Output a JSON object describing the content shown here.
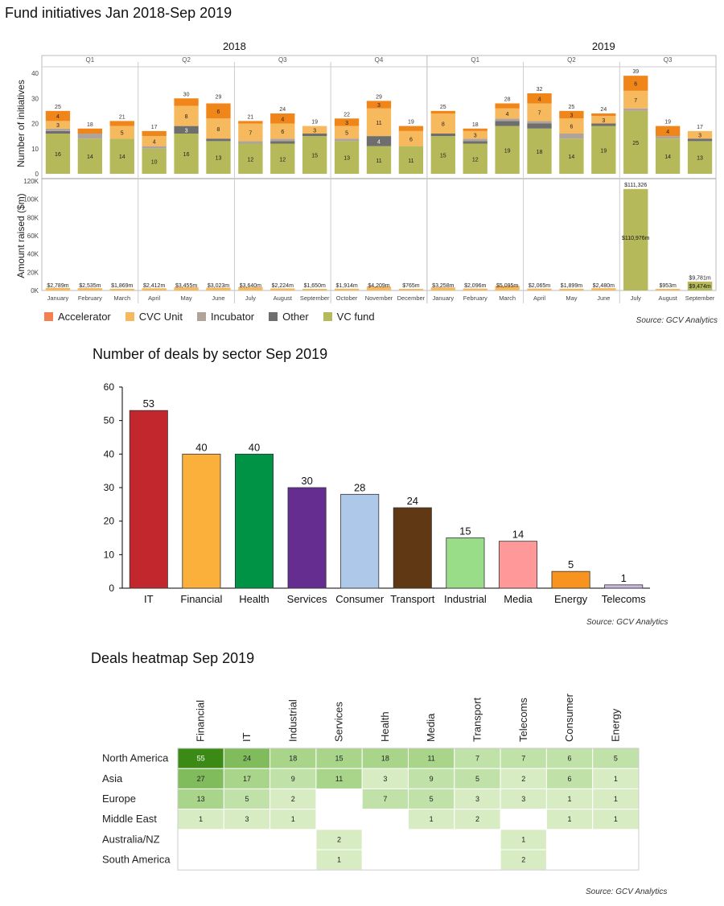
{
  "chart_data": [
    {
      "type": "bar",
      "stacked": true,
      "title": "Fund initiatives Jan 2018-Sep 2019",
      "years": [
        "2018",
        "2019"
      ],
      "quarters": [
        "Q1",
        "Q2",
        "Q3",
        "Q4",
        "Q1",
        "Q2",
        "Q3"
      ],
      "categories": [
        "January",
        "February",
        "March",
        "April",
        "May",
        "June",
        "July",
        "August",
        "September",
        "October",
        "November",
        "December",
        "January",
        "February",
        "March",
        "April",
        "May",
        "June",
        "July",
        "August",
        "September"
      ],
      "ylabel_top": "Number of initiatives",
      "ylabel_bottom": "Amount raised ($m)",
      "ylim_top": [
        0,
        40
      ],
      "yticks_top": [
        "0",
        "10",
        "20",
        "30",
        "40"
      ],
      "ylim_bottom": [
        0,
        120000
      ],
      "yticks_bottom": [
        "0K",
        "20K",
        "40K",
        "60K",
        "80K",
        "100K",
        "120K"
      ],
      "totals": [
        25,
        18,
        21,
        17,
        30,
        29,
        21,
        24,
        19,
        22,
        29,
        19,
        25,
        18,
        28,
        32,
        25,
        24,
        39,
        19,
        17
      ],
      "series": [
        {
          "name": "VC fund",
          "color": "#b5b95a",
          "values": [
            16,
            14,
            14,
            10,
            16,
            13,
            12,
            12,
            15,
            13,
            11,
            11,
            15,
            12,
            19,
            18,
            14,
            19,
            25,
            14,
            13
          ]
        },
        {
          "name": "Other",
          "color": "#6e6e6e",
          "values": [
            1,
            0,
            0,
            0,
            3,
            1,
            0,
            1,
            1,
            0,
            4,
            0,
            1,
            1,
            2,
            2,
            0,
            1,
            0,
            0,
            1
          ]
        },
        {
          "name": "Incubator",
          "color": "#b0a49a",
          "values": [
            1,
            2,
            0,
            1,
            0,
            0,
            1,
            1,
            0,
            1,
            0,
            0,
            0,
            1,
            1,
            1,
            2,
            0,
            1,
            1,
            0
          ]
        },
        {
          "name": "CVC Unit",
          "color": "#f7b95d",
          "values": [
            3,
            0,
            5,
            4,
            8,
            8,
            7,
            6,
            3,
            5,
            11,
            6,
            8,
            3,
            4,
            7,
            6,
            3,
            7,
            0,
            3
          ]
        },
        {
          "name": "Accelerator",
          "color": "#f0861a",
          "values": [
            4,
            2,
            2,
            2,
            3,
            6,
            1,
            4,
            0,
            3,
            3,
            2,
            1,
            1,
            2,
            4,
            3,
            1,
            6,
            4,
            0
          ]
        }
      ],
      "labels": [
        [
          "16",
          "",
          "",
          "3",
          "4"
        ],
        [
          "14",
          "",
          "",
          "",
          ""
        ],
        [
          "14",
          "",
          "",
          "5",
          ""
        ],
        [
          "10",
          "",
          "",
          "4",
          ""
        ],
        [
          "16",
          "3",
          "",
          "8",
          ""
        ],
        [
          "13",
          "",
          "",
          "8",
          "6"
        ],
        [
          "12",
          "",
          "",
          "7",
          ""
        ],
        [
          "12",
          "",
          "",
          "6",
          "4"
        ],
        [
          "15",
          "",
          "",
          "3",
          ""
        ],
        [
          "13",
          "",
          "",
          "5",
          "3"
        ],
        [
          "11",
          "4",
          "",
          "11",
          "3"
        ],
        [
          "11",
          "",
          "",
          "6",
          ""
        ],
        [
          "15",
          "",
          "",
          "8",
          ""
        ],
        [
          "12",
          "",
          "",
          "3",
          ""
        ],
        [
          "19",
          "",
          "",
          "4",
          ""
        ],
        [
          "18",
          "",
          "",
          "7",
          "4"
        ],
        [
          "14",
          "",
          "",
          "6",
          "3"
        ],
        [
          "19",
          "",
          "",
          "3",
          ""
        ],
        [
          "25",
          "",
          "",
          "7",
          "6"
        ],
        [
          "14",
          "",
          "",
          "",
          "4"
        ],
        [
          "13",
          "",
          "",
          "3",
          ""
        ]
      ],
      "amounts": [
        2789,
        2535,
        1869,
        2412,
        3455,
        3023,
        3640,
        2224,
        1650,
        1914,
        4209,
        765,
        3258,
        2096,
        5095,
        2065,
        1899,
        2480,
        111326,
        953,
        9781
      ],
      "amount_labels": [
        "$2,789m",
        "$2,535m",
        "$1,869m",
        "$2,412m",
        "$3,455m",
        "$3,023m",
        "$3,640m",
        "$2,224m",
        "$1,650m",
        "$1,914m",
        "$4,209m",
        "$765m",
        "$3,258m",
        "$2,096m",
        "$5,095m",
        "$2,065m",
        "$1,899m",
        "$2,480m",
        "$111,326",
        "$953m",
        "$9,781m"
      ],
      "vc_amounts": [
        null,
        null,
        null,
        null,
        null,
        null,
        null,
        null,
        null,
        null,
        null,
        null,
        null,
        null,
        null,
        null,
        null,
        null,
        110976,
        null,
        9474
      ],
      "vc_amount_labels": {
        "18": "$110,976m",
        "20": "$9,474m"
      },
      "legend": [
        "Accelerator",
        "CVC Unit",
        "Incubator",
        "Other",
        "VC fund"
      ],
      "source": "Source: GCV Analytics"
    },
    {
      "type": "bar",
      "title": "Number of deals by sector Sep 2019",
      "categories": [
        "IT",
        "Financial",
        "Health",
        "Services",
        "Consumer",
        "Transport",
        "Industrial",
        "Media",
        "Energy",
        "Telecoms"
      ],
      "values": [
        53,
        40,
        40,
        30,
        28,
        24,
        15,
        14,
        5,
        1
      ],
      "colors": [
        "#c1272d",
        "#fbb03b",
        "#009245",
        "#662d91",
        "#adc8e8",
        "#603813",
        "#99dd88",
        "#ff9999",
        "#f7931e",
        "#c8b8e0"
      ],
      "ylim": [
        0,
        60
      ],
      "yticks": [
        "0",
        "10",
        "20",
        "30",
        "40",
        "50",
        "60"
      ],
      "xlabel": "",
      "ylabel": "",
      "source": "Source: GCV Analytics"
    },
    {
      "type": "heatmap",
      "title": "Deals heatmap Sep 2019",
      "columns": [
        "Financial",
        "IT",
        "Industrial",
        "Services",
        "Health",
        "Media",
        "Transport",
        "Telecoms",
        "Consumer",
        "Energy"
      ],
      "rows": [
        "North America",
        "Asia",
        "Europe",
        "Middle East",
        "Australia/NZ",
        "South America"
      ],
      "values": [
        [
          55,
          24,
          18,
          15,
          18,
          11,
          7,
          7,
          6,
          5
        ],
        [
          27,
          17,
          9,
          11,
          3,
          9,
          5,
          2,
          6,
          1
        ],
        [
          13,
          5,
          2,
          null,
          7,
          5,
          3,
          3,
          1,
          1
        ],
        [
          1,
          3,
          1,
          null,
          null,
          1,
          2,
          null,
          1,
          1
        ],
        [
          null,
          null,
          null,
          2,
          null,
          null,
          null,
          1,
          null,
          null
        ],
        [
          null,
          null,
          null,
          1,
          null,
          null,
          null,
          2,
          null,
          null
        ]
      ],
      "source": "Source: GCV Analytics"
    }
  ]
}
